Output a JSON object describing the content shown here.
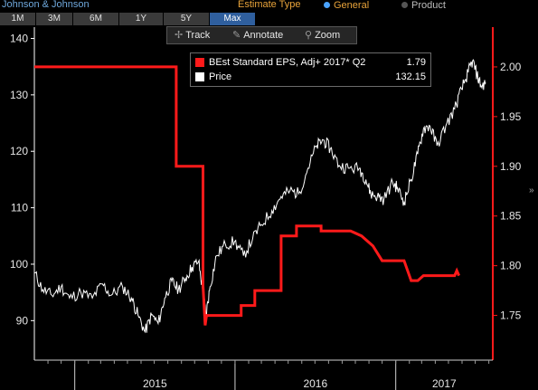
{
  "header": {
    "company": "Johnson & Johnson",
    "estimate_type_label": "Estimate Type",
    "options": [
      {
        "label": "General",
        "selected": true
      },
      {
        "label": "Product",
        "selected": false
      }
    ]
  },
  "ranges": [
    {
      "label": "1M",
      "active": false
    },
    {
      "label": "3M",
      "active": false
    },
    {
      "label": "6M",
      "active": false
    },
    {
      "label": "1Y",
      "active": false
    },
    {
      "label": "5Y",
      "active": false
    },
    {
      "label": "Max",
      "active": true
    }
  ],
  "toolbar": {
    "track": "Track",
    "annotate": "Annotate",
    "zoom": "Zoom"
  },
  "icons": {
    "track": "crosshair-icon",
    "annotate": "pencil-icon",
    "zoom": "magnifier-icon",
    "scroll": "chevron-right-icon"
  },
  "colors": {
    "price": "#ffffff",
    "eps": "#ff1a1a",
    "left_axis": "#ffffff",
    "right_axis": "#ff1a1a",
    "background": "#000000"
  },
  "chart_data": {
    "type": "line",
    "title": "",
    "xlabel": "",
    "ylabel": "",
    "x_ticks": [
      "2015",
      "2016",
      "2017"
    ],
    "y_left": {
      "ticks": [
        90,
        100,
        110,
        120,
        130,
        140
      ],
      "range": [
        83,
        142
      ]
    },
    "y_right": {
      "ticks": [
        1.75,
        1.8,
        1.85,
        1.9,
        1.95,
        2.0
      ],
      "range": [
        1.705,
        2.04
      ]
    },
    "legend": {
      "placement": "top-center"
    },
    "series": [
      {
        "name": "BEst Standard EPS, Adj+ 2017* Q2",
        "last_value": "1.79",
        "axis": "right",
        "values": [
          {
            "x": "2014-10-01",
            "y": 2.0
          },
          {
            "x": "2015-08-20",
            "y": 2.0
          },
          {
            "x": "2015-08-20",
            "y": 1.9
          },
          {
            "x": "2015-10-20",
            "y": 1.9
          },
          {
            "x": "2015-10-20",
            "y": 1.78
          },
          {
            "x": "2015-10-25",
            "y": 1.74
          },
          {
            "x": "2015-10-28",
            "y": 1.75
          },
          {
            "x": "2016-01-15",
            "y": 1.75
          },
          {
            "x": "2016-01-15",
            "y": 1.76
          },
          {
            "x": "2016-02-15",
            "y": 1.76
          },
          {
            "x": "2016-02-15",
            "y": 1.775
          },
          {
            "x": "2016-04-15",
            "y": 1.775
          },
          {
            "x": "2016-04-15",
            "y": 1.83
          },
          {
            "x": "2016-05-20",
            "y": 1.83
          },
          {
            "x": "2016-05-20",
            "y": 1.84
          },
          {
            "x": "2016-07-15",
            "y": 1.84
          },
          {
            "x": "2016-07-15",
            "y": 1.835
          },
          {
            "x": "2016-09-20",
            "y": 1.835
          },
          {
            "x": "2016-10-15",
            "y": 1.83
          },
          {
            "x": "2016-11-10",
            "y": 1.82
          },
          {
            "x": "2016-12-01",
            "y": 1.805
          },
          {
            "x": "2017-01-20",
            "y": 1.805
          },
          {
            "x": "2017-02-05",
            "y": 1.785
          },
          {
            "x": "2017-02-20",
            "y": 1.785
          },
          {
            "x": "2017-03-05",
            "y": 1.79
          },
          {
            "x": "2017-05-15",
            "y": 1.79
          },
          {
            "x": "2017-05-20",
            "y": 1.795
          },
          {
            "x": "2017-05-25",
            "y": 1.79
          }
        ]
      },
      {
        "name": "Price",
        "last_value": "132.15",
        "axis": "left",
        "values": [
          {
            "x": "2014-10-01",
            "y": 98.5
          },
          {
            "x": "2014-10-20",
            "y": 95.5
          },
          {
            "x": "2014-11-10",
            "y": 94.5
          },
          {
            "x": "2014-12-01",
            "y": 96.0
          },
          {
            "x": "2014-12-20",
            "y": 94.0
          },
          {
            "x": "2015-01-15",
            "y": 95.0
          },
          {
            "x": "2015-02-10",
            "y": 94.0
          },
          {
            "x": "2015-03-05",
            "y": 96.5
          },
          {
            "x": "2015-03-25",
            "y": 94.5
          },
          {
            "x": "2015-04-20",
            "y": 96.0
          },
          {
            "x": "2015-05-10",
            "y": 94.0
          },
          {
            "x": "2015-05-25",
            "y": 91.0
          },
          {
            "x": "2015-06-10",
            "y": 88.0
          },
          {
            "x": "2015-06-25",
            "y": 91.0
          },
          {
            "x": "2015-07-10",
            "y": 89.5
          },
          {
            "x": "2015-07-25",
            "y": 94.0
          },
          {
            "x": "2015-08-10",
            "y": 97.0
          },
          {
            "x": "2015-08-25",
            "y": 95.5
          },
          {
            "x": "2015-09-10",
            "y": 97.5
          },
          {
            "x": "2015-09-25",
            "y": 99.5
          },
          {
            "x": "2015-10-10",
            "y": 100.5
          },
          {
            "x": "2015-10-20",
            "y": 95.0
          },
          {
            "x": "2015-10-27",
            "y": 91.0
          },
          {
            "x": "2015-11-05",
            "y": 96.0
          },
          {
            "x": "2015-11-20",
            "y": 101.5
          },
          {
            "x": "2015-12-10",
            "y": 103.5
          },
          {
            "x": "2015-12-31",
            "y": 104.0
          },
          {
            "x": "2016-01-20",
            "y": 101.5
          },
          {
            "x": "2016-02-10",
            "y": 104.5
          },
          {
            "x": "2016-03-01",
            "y": 107.0
          },
          {
            "x": "2016-03-25",
            "y": 109.5
          },
          {
            "x": "2016-04-15",
            "y": 112.0
          },
          {
            "x": "2016-05-05",
            "y": 113.0
          },
          {
            "x": "2016-05-25",
            "y": 112.5
          },
          {
            "x": "2016-06-15",
            "y": 117.0
          },
          {
            "x": "2016-07-05",
            "y": 121.0
          },
          {
            "x": "2016-07-20",
            "y": 122.0
          },
          {
            "x": "2016-08-05",
            "y": 120.5
          },
          {
            "x": "2016-08-25",
            "y": 117.5
          },
          {
            "x": "2016-09-15",
            "y": 117.0
          },
          {
            "x": "2016-10-10",
            "y": 117.0
          },
          {
            "x": "2016-10-25",
            "y": 115.0
          },
          {
            "x": "2016-11-05",
            "y": 112.5
          },
          {
            "x": "2016-11-20",
            "y": 112.0
          },
          {
            "x": "2016-12-05",
            "y": 111.5
          },
          {
            "x": "2016-12-25",
            "y": 114.5
          },
          {
            "x": "2017-01-05",
            "y": 113.5
          },
          {
            "x": "2017-01-20",
            "y": 111.0
          },
          {
            "x": "2017-02-05",
            "y": 115.0
          },
          {
            "x": "2017-02-20",
            "y": 119.5
          },
          {
            "x": "2017-03-05",
            "y": 124.0
          },
          {
            "x": "2017-03-20",
            "y": 124.5
          },
          {
            "x": "2017-04-05",
            "y": 121.0
          },
          {
            "x": "2017-04-25",
            "y": 124.5
          },
          {
            "x": "2017-05-15",
            "y": 127.5
          },
          {
            "x": "2017-05-31",
            "y": 131.0
          },
          {
            "x": "2017-06-15",
            "y": 134.0
          },
          {
            "x": "2017-06-25",
            "y": 136.0
          },
          {
            "x": "2017-07-05",
            "y": 133.5
          },
          {
            "x": "2017-07-15",
            "y": 131.5
          },
          {
            "x": "2017-07-25",
            "y": 132.15
          }
        ]
      }
    ]
  }
}
